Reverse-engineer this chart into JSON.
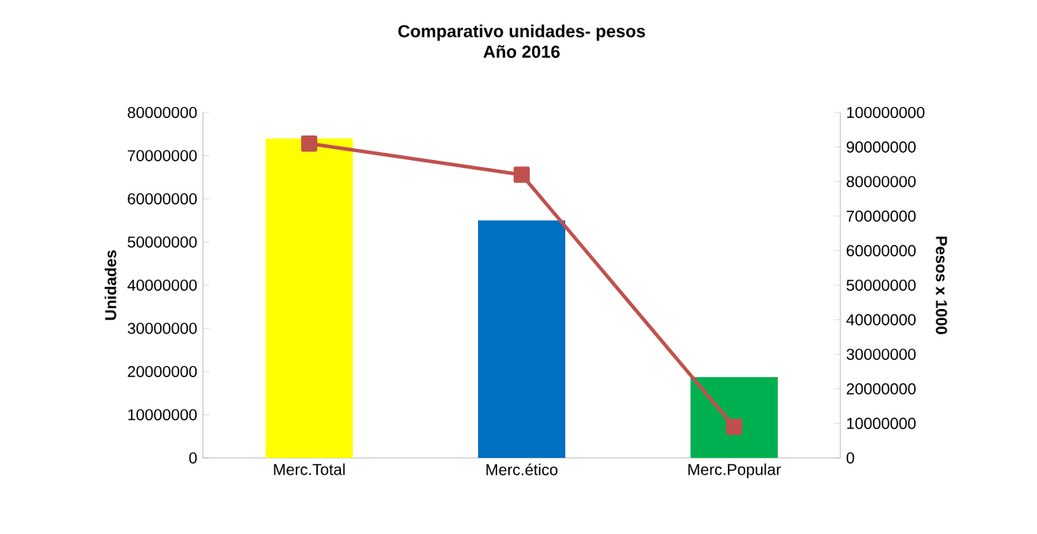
{
  "chart_data": {
    "type": "bar",
    "title": "Comparativo unidades- pesos",
    "subtitle": "Año 2016",
    "ylabel": "Unidades",
    "y2label": "Pesos x 1000",
    "categories": [
      "Merc.Total",
      "Merc.ético",
      "Merc.Popular"
    ],
    "series": [
      {
        "colors": [
          "#ffff00",
          "#0070c0",
          "#00b050"
        ],
        "values": [
          74000000,
          55000000,
          18700000
        ]
      },
      {
        "type": "line",
        "axis": "y2",
        "color": "#c0504d",
        "values": [
          91000000,
          82000000,
          9000000
        ]
      }
    ],
    "marker": "square",
    "ylim": [
      0,
      80000000
    ],
    "yticks": [
      0,
      10000000,
      20000000,
      30000000,
      40000000,
      50000000,
      60000000,
      70000000,
      80000000
    ],
    "y2lim": [
      0,
      100000000
    ],
    "y2ticks": [
      0,
      10000000,
      20000000,
      30000000,
      40000000,
      50000000,
      60000000,
      70000000,
      80000000,
      90000000,
      100000000
    ]
  }
}
